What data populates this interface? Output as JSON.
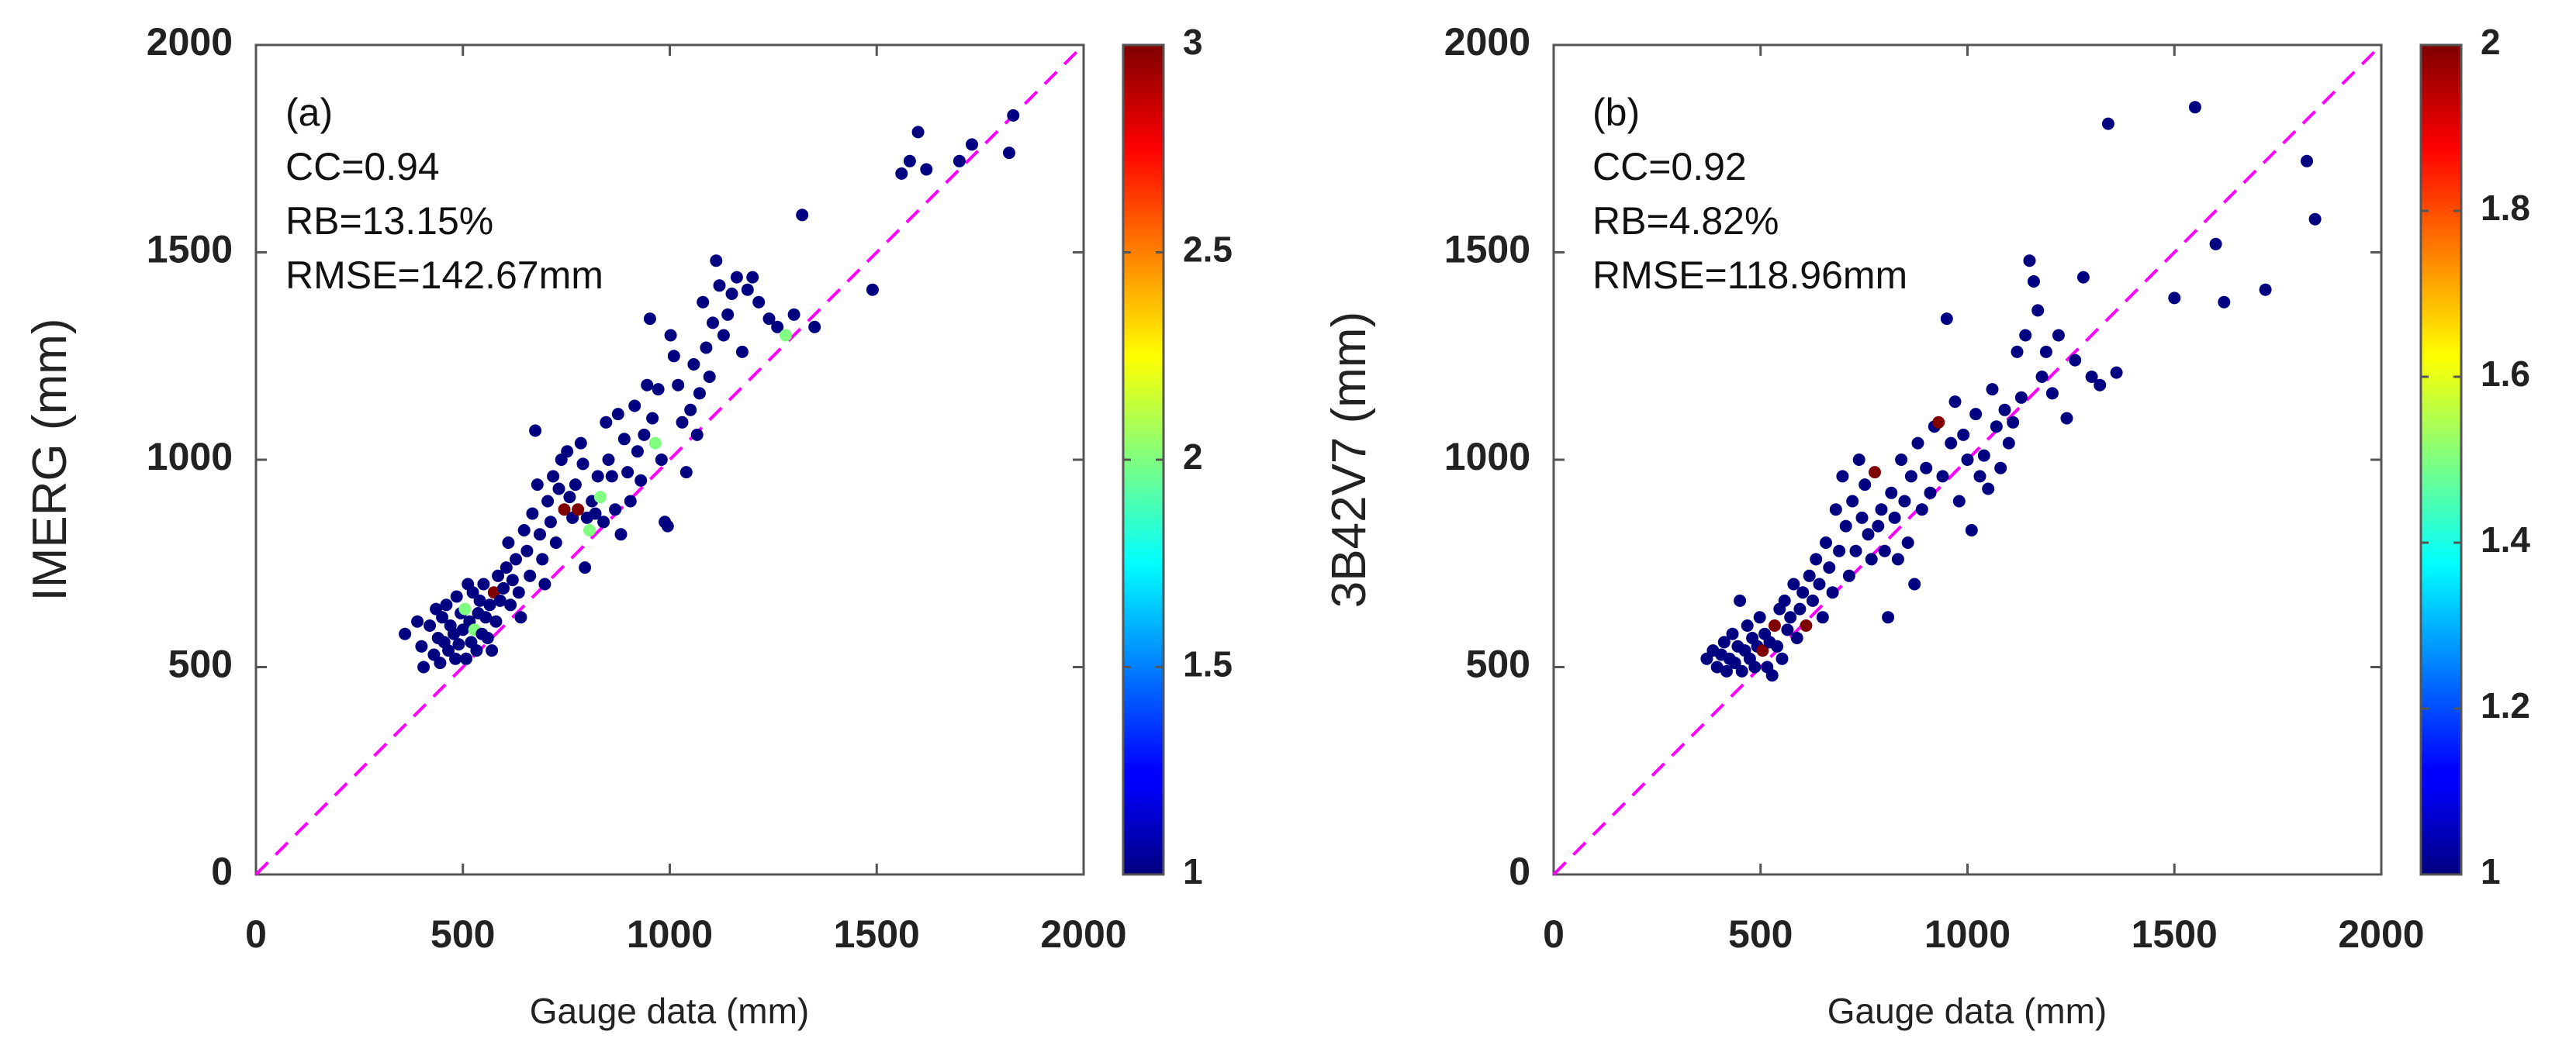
{
  "chart_data": [
    {
      "type": "scatter",
      "panel_label": "(a)",
      "xlabel": "Gauge data (mm)",
      "ylabel": "IMERG (mm)",
      "xlim": [
        0,
        2000
      ],
      "ylim": [
        0,
        2000
      ],
      "xticks": [
        "0",
        "500",
        "1000",
        "1500",
        "2000"
      ],
      "yticks": [
        "0",
        "500",
        "1000",
        "1500",
        "2000"
      ],
      "reference_line": "1:1 line (magenta, dashed)",
      "stats": [
        "CC=0.94",
        "RB=13.15%",
        "RMSE=142.67mm"
      ],
      "colorbar": {
        "colormap": "jet",
        "range": [
          1,
          3
        ],
        "ticks": [
          "1",
          "1.5",
          "2",
          "2.5",
          "3"
        ]
      },
      "points": [
        [
          360,
          580,
          1
        ],
        [
          390,
          610,
          1
        ],
        [
          400,
          550,
          1
        ],
        [
          405,
          500,
          1
        ],
        [
          420,
          600,
          1
        ],
        [
          430,
          530,
          1
        ],
        [
          435,
          640,
          1
        ],
        [
          440,
          570,
          1
        ],
        [
          445,
          510,
          1
        ],
        [
          450,
          620,
          1
        ],
        [
          455,
          560,
          1
        ],
        [
          460,
          650,
          1
        ],
        [
          465,
          540,
          1
        ],
        [
          470,
          600,
          1
        ],
        [
          478,
          580,
          1
        ],
        [
          482,
          520,
          1
        ],
        [
          485,
          670,
          1
        ],
        [
          490,
          555,
          1
        ],
        [
          495,
          630,
          1
        ],
        [
          500,
          590,
          1
        ],
        [
          505,
          640,
          2
        ],
        [
          508,
          520,
          1
        ],
        [
          512,
          700,
          1
        ],
        [
          516,
          610,
          1
        ],
        [
          520,
          560,
          1
        ],
        [
          524,
          680,
          1
        ],
        [
          528,
          590,
          2
        ],
        [
          533,
          540,
          1
        ],
        [
          537,
          630,
          1
        ],
        [
          541,
          660,
          1
        ],
        [
          546,
          580,
          1
        ],
        [
          550,
          700,
          1
        ],
        [
          555,
          620,
          1
        ],
        [
          560,
          570,
          1
        ],
        [
          565,
          650,
          1
        ],
        [
          570,
          540,
          1
        ],
        [
          575,
          680,
          3
        ],
        [
          580,
          610,
          1
        ],
        [
          585,
          720,
          1
        ],
        [
          590,
          660,
          1
        ],
        [
          598,
          690,
          1
        ],
        [
          605,
          740,
          1
        ],
        [
          610,
          800,
          1
        ],
        [
          615,
          650,
          1
        ],
        [
          620,
          710,
          1
        ],
        [
          628,
          760,
          1
        ],
        [
          635,
          680,
          1
        ],
        [
          640,
          620,
          1
        ],
        [
          648,
          830,
          1
        ],
        [
          655,
          780,
          1
        ],
        [
          662,
          720,
          1
        ],
        [
          668,
          870,
          1
        ],
        [
          675,
          1070,
          1
        ],
        [
          680,
          940,
          1
        ],
        [
          686,
          820,
          1
        ],
        [
          692,
          760,
          1
        ],
        [
          698,
          700,
          1
        ],
        [
          705,
          900,
          1
        ],
        [
          712,
          850,
          1
        ],
        [
          718,
          960,
          1
        ],
        [
          725,
          800,
          1
        ],
        [
          732,
          930,
          1
        ],
        [
          738,
          1000,
          1
        ],
        [
          745,
          880,
          3
        ],
        [
          752,
          1020,
          1
        ],
        [
          758,
          910,
          1
        ],
        [
          765,
          860,
          1
        ],
        [
          772,
          940,
          1
        ],
        [
          778,
          880,
          3
        ],
        [
          785,
          1040,
          1
        ],
        [
          790,
          990,
          1
        ],
        [
          795,
          740,
          1
        ],
        [
          800,
          860,
          1
        ],
        [
          806,
          830,
          2
        ],
        [
          812,
          900,
          1
        ],
        [
          820,
          870,
          1
        ],
        [
          826,
          960,
          1
        ],
        [
          832,
          910,
          2
        ],
        [
          840,
          850,
          1
        ],
        [
          846,
          1090,
          1
        ],
        [
          852,
          1000,
          1
        ],
        [
          860,
          960,
          1
        ],
        [
          868,
          880,
          1
        ],
        [
          875,
          1110,
          1
        ],
        [
          882,
          820,
          1
        ],
        [
          890,
          1050,
          1
        ],
        [
          898,
          970,
          1
        ],
        [
          905,
          900,
          1
        ],
        [
          915,
          1130,
          1
        ],
        [
          922,
          1020,
          1
        ],
        [
          930,
          950,
          1
        ],
        [
          938,
          1060,
          1
        ],
        [
          945,
          1180,
          1
        ],
        [
          952,
          1340,
          1
        ],
        [
          958,
          1100,
          1
        ],
        [
          965,
          1040,
          2
        ],
        [
          972,
          1170,
          1
        ],
        [
          980,
          1000,
          1
        ],
        [
          988,
          850,
          1
        ],
        [
          995,
          840,
          1
        ],
        [
          1002,
          1300,
          1
        ],
        [
          1010,
          1250,
          1
        ],
        [
          1020,
          1180,
          1
        ],
        [
          1030,
          1090,
          1
        ],
        [
          1040,
          970,
          1
        ],
        [
          1050,
          1120,
          1
        ],
        [
          1058,
          1230,
          1
        ],
        [
          1066,
          1060,
          1
        ],
        [
          1072,
          1160,
          1
        ],
        [
          1080,
          1380,
          1
        ],
        [
          1088,
          1270,
          1
        ],
        [
          1096,
          1200,
          1
        ],
        [
          1104,
          1330,
          1
        ],
        [
          1112,
          1480,
          1
        ],
        [
          1120,
          1420,
          1
        ],
        [
          1130,
          1300,
          1
        ],
        [
          1140,
          1350,
          1
        ],
        [
          1150,
          1400,
          1
        ],
        [
          1162,
          1440,
          1
        ],
        [
          1175,
          1260,
          1
        ],
        [
          1188,
          1410,
          1
        ],
        [
          1200,
          1440,
          1
        ],
        [
          1215,
          1380,
          1
        ],
        [
          1240,
          1340,
          1
        ],
        [
          1260,
          1320,
          1
        ],
        [
          1280,
          1300,
          2
        ],
        [
          1300,
          1350,
          1
        ],
        [
          1320,
          1590,
          1
        ],
        [
          1350,
          1320,
          1
        ],
        [
          1490,
          1410,
          1
        ],
        [
          1560,
          1690,
          1
        ],
        [
          1580,
          1720,
          1
        ],
        [
          1600,
          1790,
          1
        ],
        [
          1620,
          1700,
          1
        ],
        [
          1700,
          1720,
          1
        ],
        [
          1730,
          1760,
          1
        ],
        [
          1820,
          1740,
          1
        ],
        [
          1830,
          1830,
          1
        ]
      ]
    },
    {
      "type": "scatter",
      "panel_label": "(b)",
      "xlabel": "Gauge data (mm)",
      "ylabel": "3B42V7 (mm)",
      "xlim": [
        0,
        2000
      ],
      "ylim": [
        0,
        2000
      ],
      "xticks": [
        "0",
        "500",
        "1000",
        "1500",
        "2000"
      ],
      "yticks": [
        "0",
        "500",
        "1000",
        "1500",
        "2000"
      ],
      "reference_line": "1:1 line (magenta, dashed)",
      "stats": [
        "CC=0.92",
        "RB=4.82%",
        "RMSE=118.96mm"
      ],
      "colorbar": {
        "colormap": "jet",
        "range": [
          1,
          2
        ],
        "ticks": [
          "1",
          "1.2",
          "1.4",
          "1.6",
          "1.8",
          "2"
        ]
      },
      "points": [
        [
          370,
          520,
          1
        ],
        [
          385,
          540,
          1
        ],
        [
          395,
          500,
          1
        ],
        [
          405,
          530,
          1
        ],
        [
          412,
          560,
          1
        ],
        [
          418,
          490,
          1
        ],
        [
          425,
          520,
          1
        ],
        [
          432,
          580,
          1
        ],
        [
          438,
          510,
          1
        ],
        [
          445,
          550,
          1
        ],
        [
          450,
          660,
          1
        ],
        [
          455,
          490,
          1
        ],
        [
          462,
          540,
          1
        ],
        [
          468,
          600,
          1
        ],
        [
          474,
          520,
          1
        ],
        [
          480,
          570,
          1
        ],
        [
          486,
          500,
          1
        ],
        [
          492,
          550,
          1
        ],
        [
          498,
          620,
          1
        ],
        [
          505,
          540,
          2
        ],
        [
          510,
          580,
          1
        ],
        [
          516,
          500,
          1
        ],
        [
          522,
          560,
          1
        ],
        [
          528,
          480,
          1
        ],
        [
          534,
          600,
          2
        ],
        [
          540,
          550,
          1
        ],
        [
          546,
          640,
          1
        ],
        [
          552,
          520,
          1
        ],
        [
          558,
          660,
          1
        ],
        [
          565,
          590,
          1
        ],
        [
          572,
          620,
          1
        ],
        [
          580,
          700,
          1
        ],
        [
          588,
          570,
          1
        ],
        [
          595,
          640,
          1
        ],
        [
          602,
          680,
          1
        ],
        [
          610,
          600,
          2
        ],
        [
          618,
          720,
          1
        ],
        [
          626,
          660,
          1
        ],
        [
          634,
          760,
          1
        ],
        [
          642,
          700,
          1
        ],
        [
          650,
          620,
          1
        ],
        [
          658,
          800,
          1
        ],
        [
          666,
          740,
          1
        ],
        [
          674,
          680,
          1
        ],
        [
          682,
          880,
          1
        ],
        [
          690,
          780,
          1
        ],
        [
          698,
          960,
          1
        ],
        [
          706,
          840,
          1
        ],
        [
          714,
          720,
          1
        ],
        [
          722,
          900,
          1
        ],
        [
          730,
          780,
          1
        ],
        [
          738,
          1000,
          1
        ],
        [
          745,
          860,
          1
        ],
        [
          752,
          940,
          1
        ],
        [
          760,
          820,
          1
        ],
        [
          768,
          760,
          1
        ],
        [
          776,
          970,
          2
        ],
        [
          784,
          840,
          1
        ],
        [
          792,
          880,
          1
        ],
        [
          800,
          780,
          1
        ],
        [
          808,
          620,
          1
        ],
        [
          816,
          920,
          1
        ],
        [
          824,
          860,
          1
        ],
        [
          832,
          760,
          1
        ],
        [
          840,
          1000,
          1
        ],
        [
          848,
          900,
          1
        ],
        [
          856,
          800,
          1
        ],
        [
          864,
          960,
          1
        ],
        [
          872,
          700,
          1
        ],
        [
          880,
          1040,
          1
        ],
        [
          890,
          880,
          1
        ],
        [
          900,
          980,
          1
        ],
        [
          910,
          920,
          1
        ],
        [
          920,
          1080,
          1
        ],
        [
          930,
          1090,
          2
        ],
        [
          940,
          960,
          1
        ],
        [
          950,
          1340,
          1
        ],
        [
          960,
          1040,
          1
        ],
        [
          970,
          1140,
          1
        ],
        [
          980,
          900,
          1
        ],
        [
          990,
          1060,
          1
        ],
        [
          1000,
          1000,
          1
        ],
        [
          1010,
          830,
          1
        ],
        [
          1020,
          1110,
          1
        ],
        [
          1030,
          960,
          1
        ],
        [
          1040,
          1010,
          1
        ],
        [
          1050,
          930,
          1
        ],
        [
          1060,
          1170,
          1
        ],
        [
          1070,
          1080,
          1
        ],
        [
          1080,
          980,
          1
        ],
        [
          1090,
          1120,
          1
        ],
        [
          1100,
          1040,
          1
        ],
        [
          1110,
          1090,
          1
        ],
        [
          1120,
          1260,
          1
        ],
        [
          1130,
          1150,
          1
        ],
        [
          1140,
          1300,
          1
        ],
        [
          1150,
          1480,
          1
        ],
        [
          1160,
          1430,
          1
        ],
        [
          1170,
          1360,
          1
        ],
        [
          1180,
          1200,
          1
        ],
        [
          1190,
          1260,
          1
        ],
        [
          1205,
          1160,
          1
        ],
        [
          1220,
          1300,
          1
        ],
        [
          1240,
          1100,
          1
        ],
        [
          1260,
          1240,
          1
        ],
        [
          1280,
          1440,
          1
        ],
        [
          1300,
          1200,
          1
        ],
        [
          1320,
          1180,
          1
        ],
        [
          1340,
          1810,
          1
        ],
        [
          1360,
          1210,
          1
        ],
        [
          1500,
          1390,
          1
        ],
        [
          1550,
          1850,
          1
        ],
        [
          1600,
          1520,
          1
        ],
        [
          1620,
          1380,
          1
        ],
        [
          1720,
          1410,
          1
        ],
        [
          1820,
          1720,
          1
        ],
        [
          1840,
          1580,
          1
        ]
      ]
    }
  ]
}
